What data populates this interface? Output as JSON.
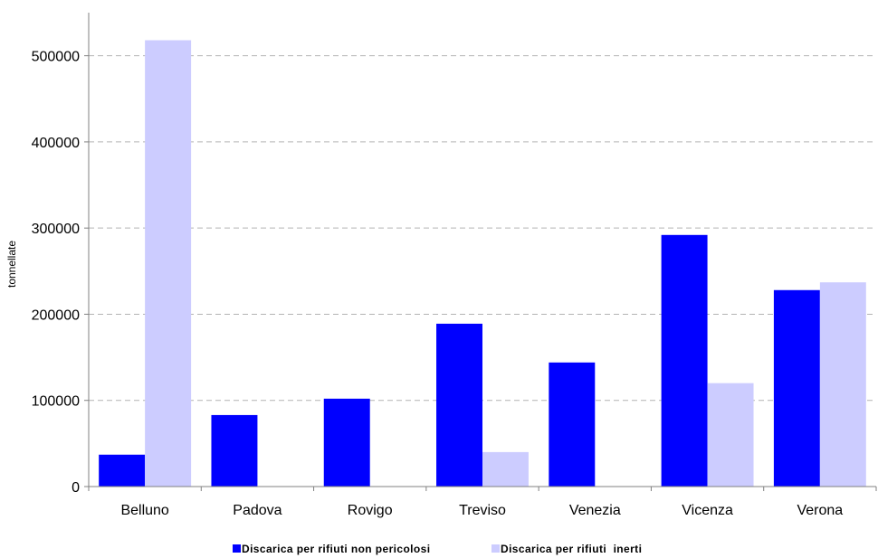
{
  "chart_data": {
    "type": "bar",
    "title": "",
    "xlabel": "",
    "ylabel": "tonnellate",
    "ylim": [
      0,
      550000
    ],
    "yticks": [
      0,
      100000,
      200000,
      300000,
      400000,
      500000
    ],
    "grid": true,
    "legend_position": "bottom",
    "categories": [
      "Belluno",
      "Padova",
      "Rovigo",
      "Treviso",
      "Venezia",
      "Vicenza",
      "Verona"
    ],
    "series": [
      {
        "name": "Discarica per rifiuti non pericolosi",
        "color": "#0000ff",
        "values": [
          37000,
          83000,
          102000,
          189000,
          144000,
          292000,
          228000
        ]
      },
      {
        "name": "Discarica per rifiuti  inerti",
        "color": "#ccccff",
        "values": [
          518000,
          0,
          0,
          40000,
          0,
          120000,
          237000
        ]
      }
    ]
  }
}
